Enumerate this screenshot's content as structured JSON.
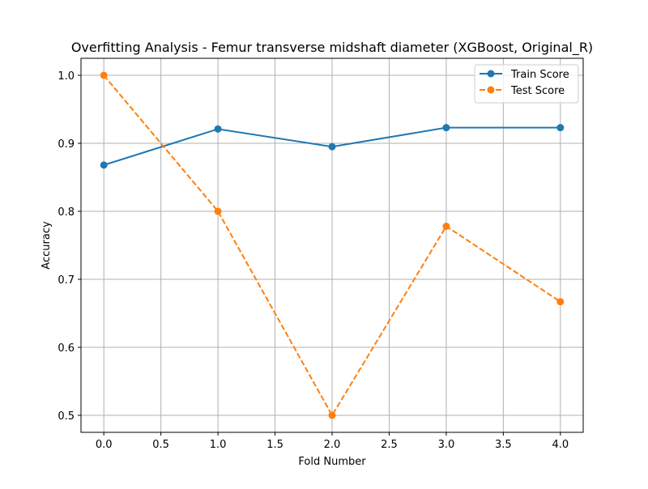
{
  "chart_data": {
    "type": "line",
    "title": "Overfitting Analysis - Femur transverse midshaft diameter (XGBoost, Original_R)",
    "xlabel": "Fold Number",
    "ylabel": "Accuracy",
    "xlim": [
      -0.2,
      4.2
    ],
    "ylim": [
      0.475,
      1.025
    ],
    "xticks": [
      0.0,
      0.5,
      1.0,
      1.5,
      2.0,
      2.5,
      3.0,
      3.5,
      4.0
    ],
    "xtick_labels": [
      "0.0",
      "0.5",
      "1.0",
      "1.5",
      "2.0",
      "2.5",
      "3.0",
      "3.5",
      "4.0"
    ],
    "yticks": [
      0.5,
      0.6,
      0.7,
      0.8,
      0.9,
      1.0
    ],
    "ytick_labels": [
      "0.5",
      "0.6",
      "0.7",
      "0.8",
      "0.9",
      "1.0"
    ],
    "grid": true,
    "legend_position": "top-right",
    "x": [
      0,
      1,
      2,
      3,
      4
    ],
    "series": [
      {
        "name": "Train Score",
        "values": [
          0.868,
          0.921,
          0.895,
          0.923,
          0.923
        ],
        "color": "#1f77b4",
        "line_style": "solid",
        "marker": "circle"
      },
      {
        "name": "Test Score",
        "values": [
          1.0,
          0.8,
          0.5,
          0.778,
          0.667
        ],
        "color": "#ff7f0e",
        "line_style": "dashed",
        "marker": "circle"
      }
    ]
  }
}
